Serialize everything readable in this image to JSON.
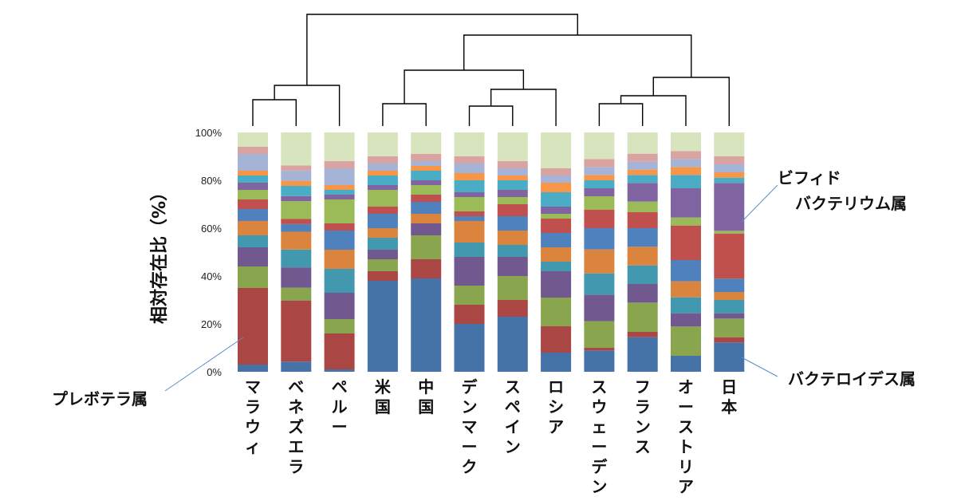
{
  "chart_data": {
    "type": "bar",
    "stacked": true,
    "ylabel": "相対存在比（%）",
    "ylim": [
      0,
      100
    ],
    "yticks": [
      "0%",
      "20%",
      "40%",
      "60%",
      "80%",
      "100%"
    ],
    "categories": [
      "マラウィ",
      "ベネズエラ",
      "ペルー",
      "米国",
      "中国",
      "デンマーク",
      "スペイン",
      "ロシア",
      "スウェーデン",
      "フランス",
      "オーストリア",
      "日本"
    ],
    "series": [
      {
        "name": "バクテロイデス属",
        "color": "#4572a7",
        "values": [
          3,
          4,
          1,
          38,
          39,
          20,
          23,
          8,
          8,
          13,
          6,
          11
        ]
      },
      {
        "name": "",
        "color": "#aa4643",
        "values": [
          32,
          24,
          15,
          4,
          8,
          8,
          7,
          11,
          1,
          2,
          0,
          2
        ]
      },
      {
        "name": "",
        "color": "#89a54e",
        "values": [
          9,
          5,
          6,
          5,
          10,
          8,
          10,
          12,
          10,
          11,
          11,
          7
        ]
      },
      {
        "name": "",
        "color": "#71588f",
        "values": [
          8,
          8,
          11,
          4,
          5,
          12,
          8,
          11,
          10,
          7,
          5,
          2
        ]
      },
      {
        "name": "",
        "color": "#4198af",
        "values": [
          5,
          7,
          10,
          5,
          0,
          6,
          5,
          4,
          8,
          7,
          6,
          5
        ]
      },
      {
        "name": "",
        "color": "#db843d",
        "values": [
          6,
          7,
          8,
          4,
          4,
          9,
          6,
          6,
          9,
          7,
          6,
          3
        ]
      },
      {
        "name": "",
        "color": "#4f81bd",
        "values": [
          5,
          3,
          8,
          6,
          5,
          2,
          6,
          6,
          8,
          7,
          8,
          5
        ]
      },
      {
        "name": "",
        "color": "#c0504d",
        "values": [
          4,
          2,
          3,
          3,
          3,
          2,
          5,
          6,
          7,
          6,
          13,
          17
        ]
      },
      {
        "name": "",
        "color": "#9bbb59",
        "values": [
          4,
          7,
          10,
          7,
          4,
          6,
          3,
          2,
          5,
          4,
          3,
          1
        ]
      },
      {
        "name": "",
        "color": "#8064a2",
        "values": [
          3,
          2,
          2,
          2,
          2,
          2,
          3,
          3,
          3,
          7,
          11,
          18
        ]
      },
      {
        "name": "",
        "color": "#4bacc6",
        "values": [
          3,
          4,
          2,
          4,
          4,
          5,
          4,
          6,
          3,
          3,
          5,
          2
        ]
      },
      {
        "name": "",
        "color": "#f79646",
        "values": [
          2,
          2,
          2,
          2,
          2,
          3,
          2,
          4,
          2,
          2,
          3,
          2
        ]
      },
      {
        "name": "",
        "color": "#a5b3d6",
        "values": [
          7,
          4,
          7,
          3,
          2,
          4,
          3,
          3,
          3,
          3,
          3,
          3
        ]
      },
      {
        "name": "",
        "color": "#d9a3a1",
        "values": [
          3,
          2,
          3,
          3,
          3,
          3,
          3,
          3,
          3,
          3,
          3,
          3
        ]
      },
      {
        "name": "",
        "color": "#d7e4bd",
        "values": [
          6,
          13,
          12,
          10,
          9,
          10,
          12,
          15,
          10,
          8,
          7,
          9
        ]
      }
    ],
    "dendrogram": {
      "clusters": [
        [
          0,
          1
        ],
        [
          3,
          4
        ],
        [
          5,
          6
        ],
        [
          8,
          9
        ],
        [
          "n0",
          2
        ],
        [
          "n2",
          7
        ],
        [
          "n3",
          10
        ],
        [
          "n6",
          11
        ],
        [
          "n1",
          "n5"
        ],
        [
          "n8",
          "n7"
        ],
        [
          "n4",
          "n9"
        ]
      ],
      "heights": [
        125,
        130,
        133,
        130,
        107,
        112,
        120,
        97,
        88,
        44,
        18
      ]
    },
    "annotations": [
      {
        "text": "プレボテラ属",
        "target": "マラウィ"
      },
      {
        "text": "ビフィド\nバクテリウム属",
        "target": "日本"
      },
      {
        "text": "バクテロイデス属",
        "target": "日本"
      }
    ]
  }
}
